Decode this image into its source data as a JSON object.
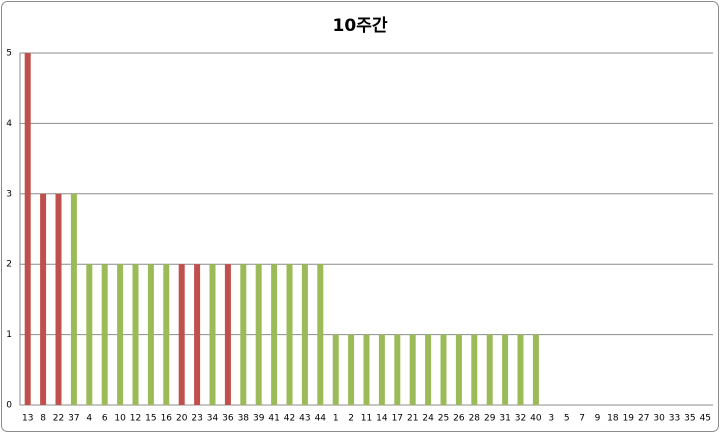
{
  "chart_data": {
    "type": "bar",
    "title": "10주간",
    "categories": [
      "13",
      "8",
      "22",
      "37",
      "4",
      "6",
      "10",
      "12",
      "15",
      "16",
      "20",
      "23",
      "34",
      "36",
      "38",
      "39",
      "41",
      "42",
      "43",
      "44",
      "1",
      "2",
      "11",
      "14",
      "17",
      "21",
      "24",
      "25",
      "26",
      "28",
      "29",
      "31",
      "32",
      "40",
      "3",
      "5",
      "7",
      "9",
      "18",
      "19",
      "27",
      "30",
      "33",
      "35",
      "45"
    ],
    "values": [
      5,
      3,
      3,
      3,
      2,
      2,
      2,
      2,
      2,
      2,
      2,
      2,
      2,
      2,
      2,
      2,
      2,
      2,
      2,
      2,
      1,
      1,
      1,
      1,
      1,
      1,
      1,
      1,
      1,
      1,
      1,
      1,
      1,
      1,
      0,
      0,
      0,
      0,
      0,
      0,
      0,
      0,
      0,
      0,
      0
    ],
    "colors": [
      "#c0504d",
      "#c0504d",
      "#c0504d",
      "#9bbb59",
      "#9bbb59",
      "#9bbb59",
      "#9bbb59",
      "#9bbb59",
      "#9bbb59",
      "#9bbb59",
      "#c0504d",
      "#c0504d",
      "#9bbb59",
      "#c0504d",
      "#9bbb59",
      "#9bbb59",
      "#9bbb59",
      "#9bbb59",
      "#9bbb59",
      "#9bbb59",
      "#9bbb59",
      "#9bbb59",
      "#9bbb59",
      "#9bbb59",
      "#9bbb59",
      "#9bbb59",
      "#9bbb59",
      "#9bbb59",
      "#9bbb59",
      "#9bbb59",
      "#9bbb59",
      "#9bbb59",
      "#9bbb59",
      "#9bbb59",
      "#9bbb59",
      "#9bbb59",
      "#9bbb59",
      "#9bbb59",
      "#9bbb59",
      "#9bbb59",
      "#9bbb59",
      "#9bbb59",
      "#9bbb59",
      "#9bbb59",
      "#9bbb59"
    ],
    "ylim": [
      0,
      5
    ],
    "yticks": [
      0,
      1,
      2,
      3,
      4,
      5
    ],
    "grid": true
  }
}
